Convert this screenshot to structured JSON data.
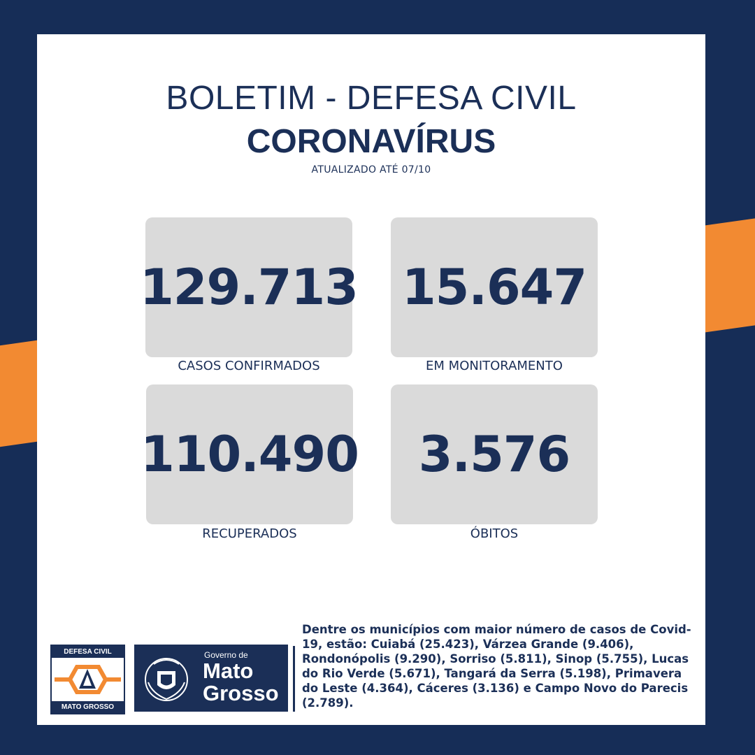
{
  "header": {
    "title": "BOLETIM - DEFESA CIVIL",
    "subtitle": "CORONAVÍRUS",
    "updated": "ATUALIZADO ATÉ 07/10"
  },
  "stats": [
    {
      "value": "129.713",
      "label": "CASOS CONFIRMADOS"
    },
    {
      "value": "15.647",
      "label": "EM MONITORAMENTO"
    },
    {
      "value": "110.490",
      "label": "RECUPERADOS"
    },
    {
      "value": "3.576",
      "label": "ÓBITOS"
    }
  ],
  "footer": {
    "defesa_civil_logo": {
      "top_text": "DEFESA CIVIL",
      "bottom_text": "MATO GROSSO"
    },
    "governo_logo": {
      "line1": "Governo de",
      "line2": "Mato",
      "line3": "Grosso"
    },
    "note": "Dentre os municípios com maior número de casos de Covid-19, estão: Cuiabá (25.423), Várzea Grande (9.406), Rondonópolis (9.290), Sorriso (5.811), Sinop (5.755), Lucas do Rio Verde (5.671), Tangará da Serra (5.198), Primavera do Leste (4.364), Cáceres (3.136) e Campo Novo do Parecis (2.789)."
  },
  "colors": {
    "navy": "#1b2f57",
    "orange": "#f28a32",
    "box_gray": "#dadada"
  }
}
